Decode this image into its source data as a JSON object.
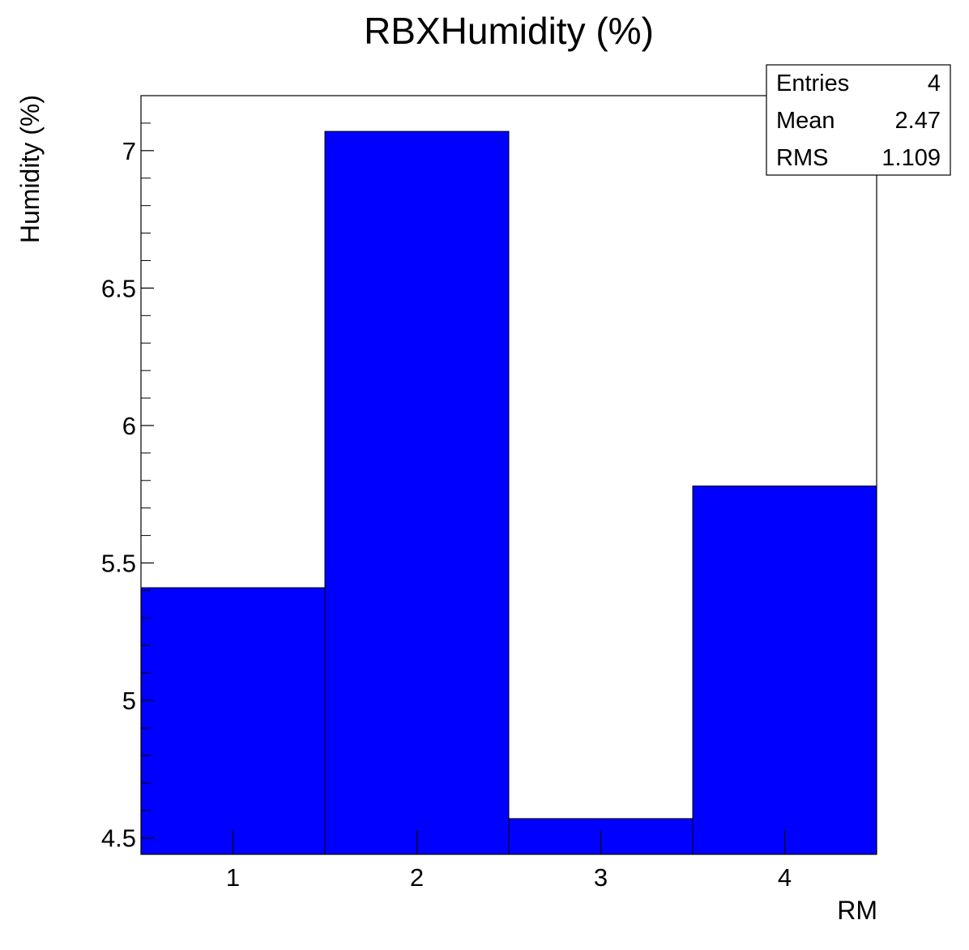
{
  "chart_data": {
    "type": "bar",
    "title": "RBXHumidity (%)",
    "xlabel": "RM",
    "ylabel": "Humidity (%)",
    "categories": [
      "1",
      "2",
      "3",
      "4"
    ],
    "values": [
      5.41,
      7.07,
      4.57,
      5.78
    ],
    "xlim": [
      0.5,
      4.5
    ],
    "ylim": [
      4.44,
      7.2
    ],
    "yticks": [
      "4.5",
      "5",
      "5.5",
      "6",
      "6.5",
      "7"
    ],
    "bar_color": "#0000ff",
    "grid": false,
    "legend": "none"
  },
  "stats": {
    "entries_label": "Entries",
    "entries_value": "4",
    "mean_label": "Mean",
    "mean_value": "2.47",
    "rms_label": "RMS",
    "rms_value": "1.109"
  }
}
